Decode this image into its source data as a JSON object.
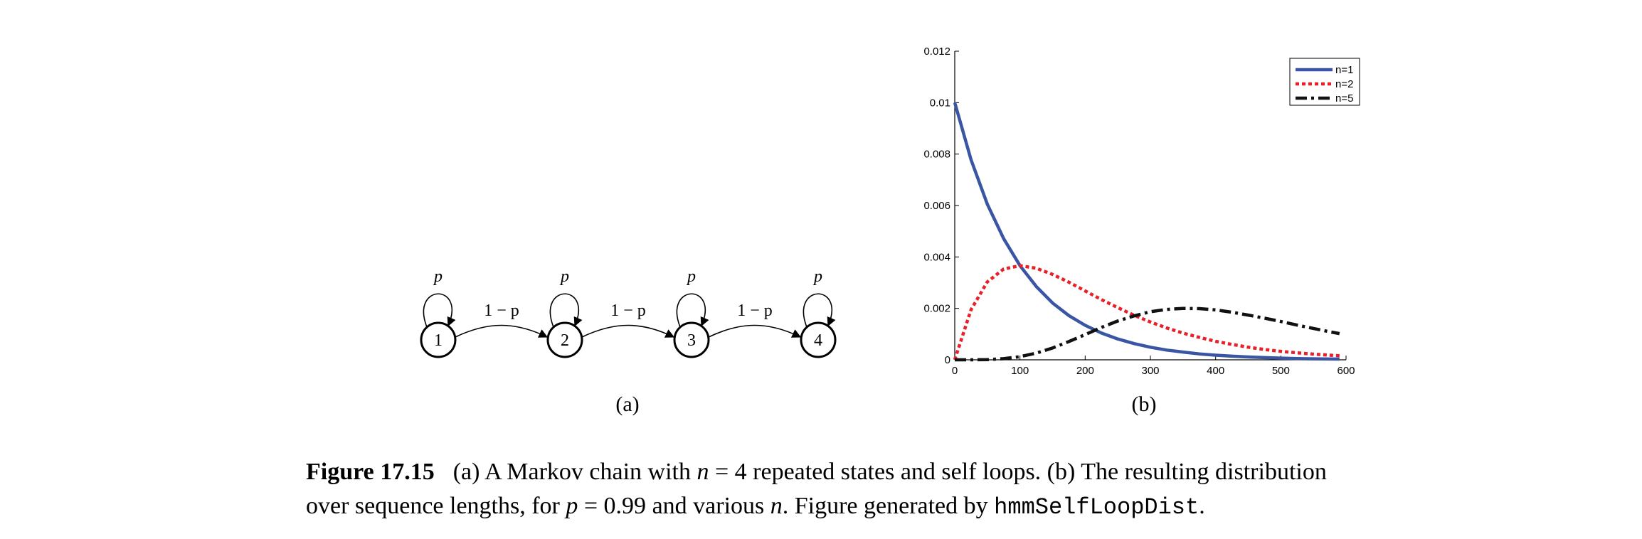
{
  "diagram": {
    "states": [
      "1",
      "2",
      "3",
      "4"
    ],
    "self_loop_label": "p",
    "transition_label": "1 − p"
  },
  "panel_labels": {
    "a": "(a)",
    "b": "(b)"
  },
  "chart_data": {
    "type": "line",
    "title": "",
    "xlabel": "",
    "ylabel": "",
    "xlim": [
      0,
      600
    ],
    "ylim": [
      0,
      0.012
    ],
    "x_ticks": [
      "0",
      "100",
      "200",
      "300",
      "400",
      "500",
      "600"
    ],
    "y_ticks": [
      "0",
      "0.002",
      "0.004",
      "0.006",
      "0.008",
      "0.01",
      "0.012"
    ],
    "grid": false,
    "legend_position": "top-right",
    "x": [
      0,
      25,
      50,
      75,
      100,
      125,
      150,
      175,
      200,
      225,
      250,
      275,
      300,
      325,
      350,
      375,
      400,
      425,
      450,
      475,
      500,
      525,
      550,
      575,
      590
    ],
    "series": [
      {
        "name": "n=1",
        "color": "#3a55a4",
        "style": "solid",
        "values": [
          0.01,
          0.00778,
          0.00605,
          0.00471,
          0.00366,
          0.00285,
          0.00221,
          0.00172,
          0.00134,
          0.00104,
          0.00081,
          0.00063,
          0.00049,
          0.00038,
          0.0003,
          0.00023,
          0.00018,
          0.00014,
          0.00011,
          8.5e-05,
          6.6e-05,
          5.1e-05,
          4e-05,
          3.1e-05,
          2.7e-05
        ]
      },
      {
        "name": "n=2",
        "color": "#e8202a",
        "style": "dotted",
        "values": [
          0.0,
          0.00195,
          0.00303,
          0.00353,
          0.00366,
          0.00356,
          0.00332,
          0.00302,
          0.00268,
          0.00234,
          0.00203,
          0.00173,
          0.00147,
          0.00124,
          0.00104,
          0.00087,
          0.00072,
          0.0006,
          0.00049,
          0.0004,
          0.00033,
          0.00027,
          0.00022,
          0.00018,
          0.00016
        ]
      },
      {
        "name": "n=5",
        "color": "#111111",
        "style": "dashdot",
        "values": [
          0.0,
          7e-07,
          9.4e-06,
          4.3e-05,
          0.000122,
          0.00026,
          0.00046,
          0.00071,
          0.00098,
          0.00126,
          0.00151,
          0.00171,
          0.00187,
          0.00196,
          0.002,
          0.00199,
          0.00194,
          0.00185,
          0.00174,
          0.00162,
          0.00149,
          0.00135,
          0.00122,
          0.00109,
          0.00102
        ]
      }
    ]
  },
  "caption": {
    "figure_number": "Figure 17.15",
    "line1_part1": "(a) A Markov chain with ",
    "line1_math": "n",
    "line1_eq": " = 4",
    "line1_part2": " repeated states and self loops. (b) The resulting distribution",
    "line2_part1": "over sequence lengths, for ",
    "line2_math_p": "p",
    "line2_eq": " = 0.99",
    "line2_part2": " and various ",
    "line2_math_n": "n",
    "line2_part3": ". Figure generated by ",
    "code": "hmmSelfLoopDist",
    "line2_end": "."
  }
}
